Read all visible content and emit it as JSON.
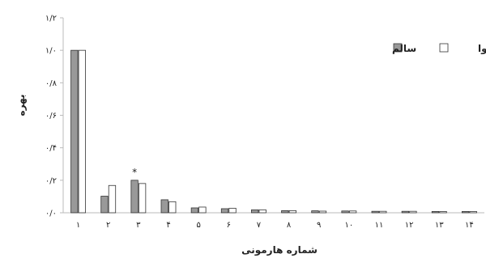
{
  "chart_data": {
    "type": "bar",
    "categories": [
      "۱",
      "۲",
      "۳",
      "۴",
      "۵",
      "۶",
      "۷",
      "۸",
      "۹",
      "۱۰",
      "۱۱",
      "۱۲",
      "۱۳",
      "۱۴"
    ],
    "series": [
      {
        "name": "سالم",
        "values": [
          1.0,
          0.102,
          0.2,
          0.08,
          0.03,
          0.025,
          0.018,
          0.013,
          0.012,
          0.011,
          0.009,
          0.009,
          0.008,
          0.008
        ]
      },
      {
        "name": "ناشنوا",
        "values": [
          1.0,
          0.168,
          0.18,
          0.068,
          0.035,
          0.028,
          0.018,
          0.013,
          0.01,
          0.011,
          0.009,
          0.009,
          0.008,
          0.008
        ]
      }
    ],
    "colors": {
      "سالم": "#999999",
      "ناشنوا": "#ffffff"
    },
    "ylim": [
      0,
      1.2
    ],
    "yticks": [
      0,
      0.2,
      0.4,
      0.6,
      0.8,
      1.0,
      1.2
    ],
    "ytick_labels": [
      "۰/۰",
      "۰/۲",
      "۰/۴",
      "۰/۶",
      "۰/۸",
      "۱/۰",
      "۱/۲"
    ],
    "xlabel": "شماره هارمونی",
    "ylabel": "بهره",
    "legend_position": "top-right",
    "annotations": [
      {
        "category_index": 2,
        "text": "*"
      }
    ]
  }
}
